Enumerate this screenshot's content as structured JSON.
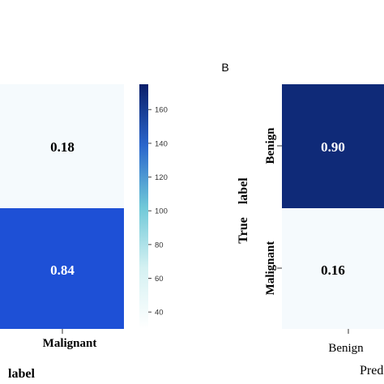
{
  "chart_data": [
    {
      "type": "heatmap",
      "values": [
        [
          0.18
        ],
        [
          0.84
        ]
      ],
      "cell_labels": [
        [
          "0.18"
        ],
        [
          "0.84"
        ]
      ],
      "x_tick_labels": [
        "Malignant"
      ],
      "xlabel": "label",
      "colorbar": {
        "ticks": [
          40,
          60,
          80,
          100,
          120,
          140,
          160
        ],
        "range": [
          30,
          175
        ]
      },
      "cell_colors": [
        "#f5fafd",
        "#1e50d6"
      ]
    },
    {
      "type": "heatmap",
      "panel_label": "B",
      "values": [
        [
          0.9
        ],
        [
          0.16
        ]
      ],
      "cell_labels": [
        [
          "0.90"
        ],
        [
          "0.16"
        ]
      ],
      "y_tick_labels": [
        "Benign",
        "Malignant"
      ],
      "x_tick_labels": [
        "Benign"
      ],
      "ylabel": "True    label",
      "xlabel": "Pred",
      "cell_colors": [
        "#0f2a78",
        "#f5fafd"
      ]
    }
  ]
}
